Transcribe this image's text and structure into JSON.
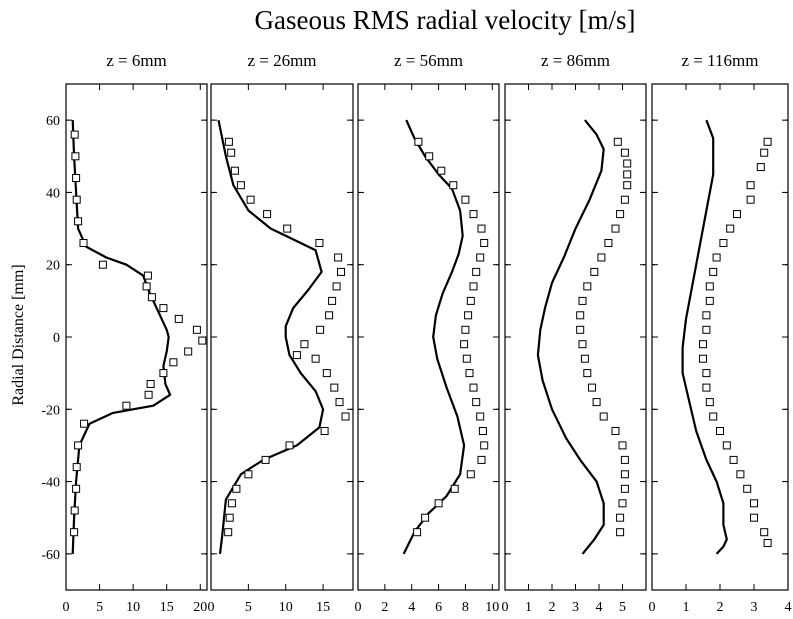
{
  "title": "Gaseous RMS radial velocity [m/s]",
  "ylabel": "Radial Distance [mm]",
  "chart_data": [
    {
      "type": "line",
      "title": "z = 6mm",
      "xlim": [
        0,
        21
      ],
      "xticks": [
        0,
        5,
        10,
        15,
        20
      ],
      "ylim": [
        -70,
        70
      ],
      "yticks": [
        -60,
        -40,
        -20,
        0,
        20,
        40,
        60
      ],
      "series": [
        {
          "kind": "line",
          "points": [
            [
              1,
              60
            ],
            [
              1.2,
              50
            ],
            [
              1.5,
              40
            ],
            [
              1.8,
              30
            ],
            [
              3,
              25
            ],
            [
              6,
              22
            ],
            [
              9,
              20
            ],
            [
              11.5,
              17
            ],
            [
              12.5,
              12
            ],
            [
              14,
              6
            ],
            [
              15,
              2
            ],
            [
              15.3,
              0
            ],
            [
              15,
              -4
            ],
            [
              14.5,
              -8
            ],
            [
              14.8,
              -13
            ],
            [
              15.5,
              -16
            ],
            [
              13,
              -19
            ],
            [
              7,
              -21
            ],
            [
              3.5,
              -24
            ],
            [
              2,
              -30
            ],
            [
              1.5,
              -40
            ],
            [
              1.2,
              -50
            ],
            [
              1,
              -60
            ]
          ]
        },
        {
          "kind": "markers",
          "points": [
            [
              1.3,
              56
            ],
            [
              1.4,
              50
            ],
            [
              1.5,
              44
            ],
            [
              1.6,
              38
            ],
            [
              1.8,
              32
            ],
            [
              2.6,
              26
            ],
            [
              5.5,
              20
            ],
            [
              12.2,
              17
            ],
            [
              12,
              14
            ],
            [
              12.8,
              11
            ],
            [
              14.5,
              8
            ],
            [
              16.8,
              5
            ],
            [
              19.5,
              2
            ],
            [
              20.3,
              -1
            ],
            [
              18.2,
              -4
            ],
            [
              16,
              -7
            ],
            [
              14.5,
              -10
            ],
            [
              12.6,
              -13
            ],
            [
              12.3,
              -16
            ],
            [
              9,
              -19
            ],
            [
              2.7,
              -24
            ],
            [
              1.8,
              -30
            ],
            [
              1.6,
              -36
            ],
            [
              1.5,
              -42
            ],
            [
              1.3,
              -48
            ],
            [
              1.2,
              -54
            ]
          ]
        }
      ]
    },
    {
      "type": "line",
      "title": "z = 26mm",
      "xlim": [
        0,
        19
      ],
      "xticks": [
        0,
        5,
        10,
        15
      ],
      "ylim": [
        -70,
        70
      ],
      "yticks": [
        -60,
        -40,
        -20,
        0,
        20,
        40,
        60
      ],
      "series": [
        {
          "kind": "line",
          "points": [
            [
              1,
              60
            ],
            [
              2,
              50
            ],
            [
              3,
              42
            ],
            [
              5,
              35
            ],
            [
              8,
              30
            ],
            [
              11,
              27
            ],
            [
              14,
              24
            ],
            [
              14.8,
              18
            ],
            [
              13,
              13
            ],
            [
              11,
              8
            ],
            [
              10,
              3
            ],
            [
              10,
              0
            ],
            [
              10.5,
              -5
            ],
            [
              12,
              -10
            ],
            [
              14,
              -15
            ],
            [
              15,
              -20
            ],
            [
              14.5,
              -25
            ],
            [
              11.5,
              -30
            ],
            [
              7,
              -34
            ],
            [
              4,
              -38
            ],
            [
              2,
              -45
            ],
            [
              1.5,
              -55
            ],
            [
              1.2,
              -60
            ]
          ]
        },
        {
          "kind": "markers",
          "points": [
            [
              2.4,
              54
            ],
            [
              2.7,
              51
            ],
            [
              3.2,
              46
            ],
            [
              4,
              42
            ],
            [
              5.3,
              38
            ],
            [
              7.5,
              34
            ],
            [
              10.2,
              30
            ],
            [
              14.5,
              26
            ],
            [
              17,
              22
            ],
            [
              17.4,
              18
            ],
            [
              16.8,
              14
            ],
            [
              16.2,
              10
            ],
            [
              15.8,
              6
            ],
            [
              14.6,
              2
            ],
            [
              12.5,
              -2
            ],
            [
              11.5,
              -5
            ],
            [
              14,
              -6
            ],
            [
              15.5,
              -10
            ],
            [
              16.5,
              -14
            ],
            [
              17.2,
              -18
            ],
            [
              18,
              -22
            ],
            [
              15.2,
              -26
            ],
            [
              10.5,
              -30
            ],
            [
              7.3,
              -34
            ],
            [
              5,
              -38
            ],
            [
              3.4,
              -42
            ],
            [
              2.8,
              -46
            ],
            [
              2.5,
              -50
            ],
            [
              2.3,
              -54
            ]
          ]
        }
      ]
    },
    {
      "type": "line",
      "title": "z = 56mm",
      "xlim": [
        0,
        10.5
      ],
      "xticks": [
        0,
        2,
        4,
        6,
        8,
        10
      ],
      "ylim": [
        -70,
        70
      ],
      "yticks": [
        -60,
        -40,
        -20,
        0,
        20,
        40,
        60
      ],
      "series": [
        {
          "kind": "line",
          "points": [
            [
              3.6,
              60
            ],
            [
              4.2,
              55
            ],
            [
              5,
              50
            ],
            [
              6,
              45
            ],
            [
              7,
              41
            ],
            [
              7.6,
              35
            ],
            [
              7.8,
              28
            ],
            [
              7.5,
              23
            ],
            [
              7,
              18
            ],
            [
              6.3,
              12
            ],
            [
              5.8,
              6
            ],
            [
              5.6,
              0
            ],
            [
              5.9,
              -6
            ],
            [
              6.6,
              -14
            ],
            [
              7.4,
              -22
            ],
            [
              7.9,
              -30
            ],
            [
              7.6,
              -38
            ],
            [
              6.6,
              -44
            ],
            [
              5.2,
              -49
            ],
            [
              4.2,
              -54
            ],
            [
              3.4,
              -60
            ]
          ]
        },
        {
          "kind": "markers",
          "points": [
            [
              4.5,
              54
            ],
            [
              5.3,
              50
            ],
            [
              6.2,
              46
            ],
            [
              7.1,
              42
            ],
            [
              8,
              38
            ],
            [
              8.6,
              34
            ],
            [
              9.2,
              30
            ],
            [
              9.4,
              26
            ],
            [
              9.1,
              22
            ],
            [
              8.8,
              18
            ],
            [
              8.6,
              14
            ],
            [
              8.4,
              10
            ],
            [
              8.2,
              6
            ],
            [
              8,
              2
            ],
            [
              7.9,
              -2
            ],
            [
              8.1,
              -6
            ],
            [
              8.3,
              -10
            ],
            [
              8.6,
              -14
            ],
            [
              8.8,
              -18
            ],
            [
              9.1,
              -22
            ],
            [
              9.3,
              -26
            ],
            [
              9.4,
              -30
            ],
            [
              9.2,
              -34
            ],
            [
              8.4,
              -38
            ],
            [
              7.2,
              -42
            ],
            [
              6,
              -46
            ],
            [
              5,
              -50
            ],
            [
              4.4,
              -54
            ]
          ]
        }
      ]
    },
    {
      "type": "line",
      "title": "z = 86mm",
      "xlim": [
        0,
        6
      ],
      "xticks": [
        0,
        1,
        2,
        3,
        4,
        5
      ],
      "ylim": [
        -70,
        70
      ],
      "yticks": [
        -60,
        -40,
        -20,
        0,
        20,
        40,
        60
      ],
      "series": [
        {
          "kind": "line",
          "points": [
            [
              3.4,
              60
            ],
            [
              3.9,
              56
            ],
            [
              4.2,
              52
            ],
            [
              4.1,
              46
            ],
            [
              3.6,
              38
            ],
            [
              3,
              30
            ],
            [
              2.5,
              22
            ],
            [
              2,
              15
            ],
            [
              1.7,
              8
            ],
            [
              1.5,
              2
            ],
            [
              1.4,
              -5
            ],
            [
              1.6,
              -12
            ],
            [
              2,
              -20
            ],
            [
              2.6,
              -28
            ],
            [
              3.2,
              -34
            ],
            [
              3.9,
              -40
            ],
            [
              4.2,
              -46
            ],
            [
              4.2,
              -52
            ],
            [
              3.8,
              -56
            ],
            [
              3.3,
              -60
            ]
          ]
        },
        {
          "kind": "markers",
          "points": [
            [
              4.8,
              54
            ],
            [
              5.1,
              51
            ],
            [
              5.2,
              48
            ],
            [
              5.2,
              45
            ],
            [
              5.2,
              42
            ],
            [
              5.1,
              38
            ],
            [
              4.9,
              34
            ],
            [
              4.7,
              30
            ],
            [
              4.4,
              26
            ],
            [
              4.1,
              22
            ],
            [
              3.8,
              18
            ],
            [
              3.5,
              14
            ],
            [
              3.3,
              10
            ],
            [
              3.2,
              6
            ],
            [
              3.2,
              2
            ],
            [
              3.3,
              -2
            ],
            [
              3.4,
              -6
            ],
            [
              3.5,
              -10
            ],
            [
              3.7,
              -14
            ],
            [
              3.9,
              -18
            ],
            [
              4.2,
              -22
            ],
            [
              4.7,
              -26
            ],
            [
              5,
              -30
            ],
            [
              5.1,
              -34
            ],
            [
              5.1,
              -38
            ],
            [
              5.1,
              -42
            ],
            [
              5,
              -46
            ],
            [
              4.9,
              -50
            ],
            [
              4.9,
              -54
            ]
          ]
        }
      ]
    },
    {
      "type": "line",
      "title": "z = 116mm",
      "xlim": [
        0,
        4
      ],
      "xticks": [
        0,
        1,
        2,
        3,
        4
      ],
      "ylim": [
        -70,
        70
      ],
      "yticks": [
        -60,
        -40,
        -20,
        0,
        20,
        40,
        60
      ],
      "series": [
        {
          "kind": "line",
          "points": [
            [
              1.6,
              60
            ],
            [
              1.8,
              55
            ],
            [
              1.8,
              45
            ],
            [
              1.6,
              35
            ],
            [
              1.4,
              25
            ],
            [
              1.2,
              15
            ],
            [
              1,
              5
            ],
            [
              0.9,
              -3
            ],
            [
              0.9,
              -10
            ],
            [
              1.1,
              -18
            ],
            [
              1.3,
              -26
            ],
            [
              1.6,
              -34
            ],
            [
              1.9,
              -40
            ],
            [
              2.1,
              -46
            ],
            [
              2.1,
              -52
            ],
            [
              2.2,
              -56
            ],
            [
              2.1,
              -58
            ],
            [
              1.9,
              -60
            ]
          ]
        },
        {
          "kind": "markers",
          "points": [
            [
              3.4,
              54
            ],
            [
              3.3,
              51
            ],
            [
              3.2,
              47
            ],
            [
              2.9,
              42
            ],
            [
              2.9,
              38
            ],
            [
              2.5,
              34
            ],
            [
              2.3,
              30
            ],
            [
              2.1,
              26
            ],
            [
              1.9,
              22
            ],
            [
              1.8,
              18
            ],
            [
              1.7,
              14
            ],
            [
              1.7,
              10
            ],
            [
              1.6,
              6
            ],
            [
              1.6,
              2
            ],
            [
              1.5,
              -2
            ],
            [
              1.5,
              -6
            ],
            [
              1.6,
              -10
            ],
            [
              1.6,
              -14
            ],
            [
              1.7,
              -18
            ],
            [
              1.8,
              -22
            ],
            [
              2,
              -26
            ],
            [
              2.2,
              -30
            ],
            [
              2.4,
              -34
            ],
            [
              2.6,
              -38
            ],
            [
              2.8,
              -42
            ],
            [
              3,
              -46
            ],
            [
              3,
              -50
            ],
            [
              3.3,
              -54
            ],
            [
              3.4,
              -57
            ]
          ]
        }
      ]
    }
  ]
}
